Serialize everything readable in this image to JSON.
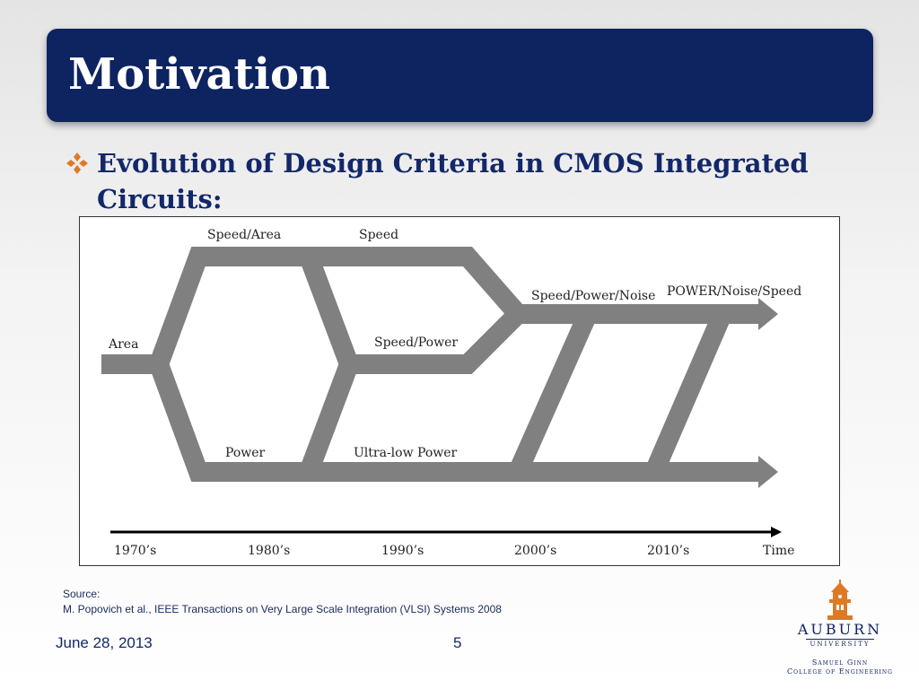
{
  "slide": {
    "title": "Motivation",
    "bullet": "Evolution of Design Criteria in CMOS Integrated Circuits:",
    "source_label": "Source:",
    "source_citation": "M. Popovich et al., IEEE Transactions on Very Large Scale Integration (VLSI) Systems 2008",
    "date": "June 28, 2013",
    "page_number": "5"
  },
  "diagram": {
    "labels": {
      "area": "Area",
      "speed_area": "Speed/Area",
      "speed": "Speed",
      "speed_power": "Speed/Power",
      "power": "Power",
      "ultra_low_power": "Ultra-low Power",
      "speed_power_noise": "Speed/Power/Noise",
      "power_noise_speed": "POWER/Noise/Speed"
    },
    "timeline": [
      "1970’s",
      "1980’s",
      "1990’s",
      "2000’s",
      "2010’s",
      "Time"
    ],
    "colors": {
      "path": "#808080",
      "axis": "#000000"
    }
  },
  "logo": {
    "university": "AUBURN",
    "subtitle": "UNIVERSITY",
    "college_line1": "Samuel Ginn",
    "college_line2": "College of Engineering",
    "colors": {
      "orange": "#dd7a25",
      "navy": "#0e2460"
    }
  },
  "theme": {
    "title_bg": "#0e2460",
    "bullet_color": "#dd7a25",
    "text_color": "#13286a"
  }
}
